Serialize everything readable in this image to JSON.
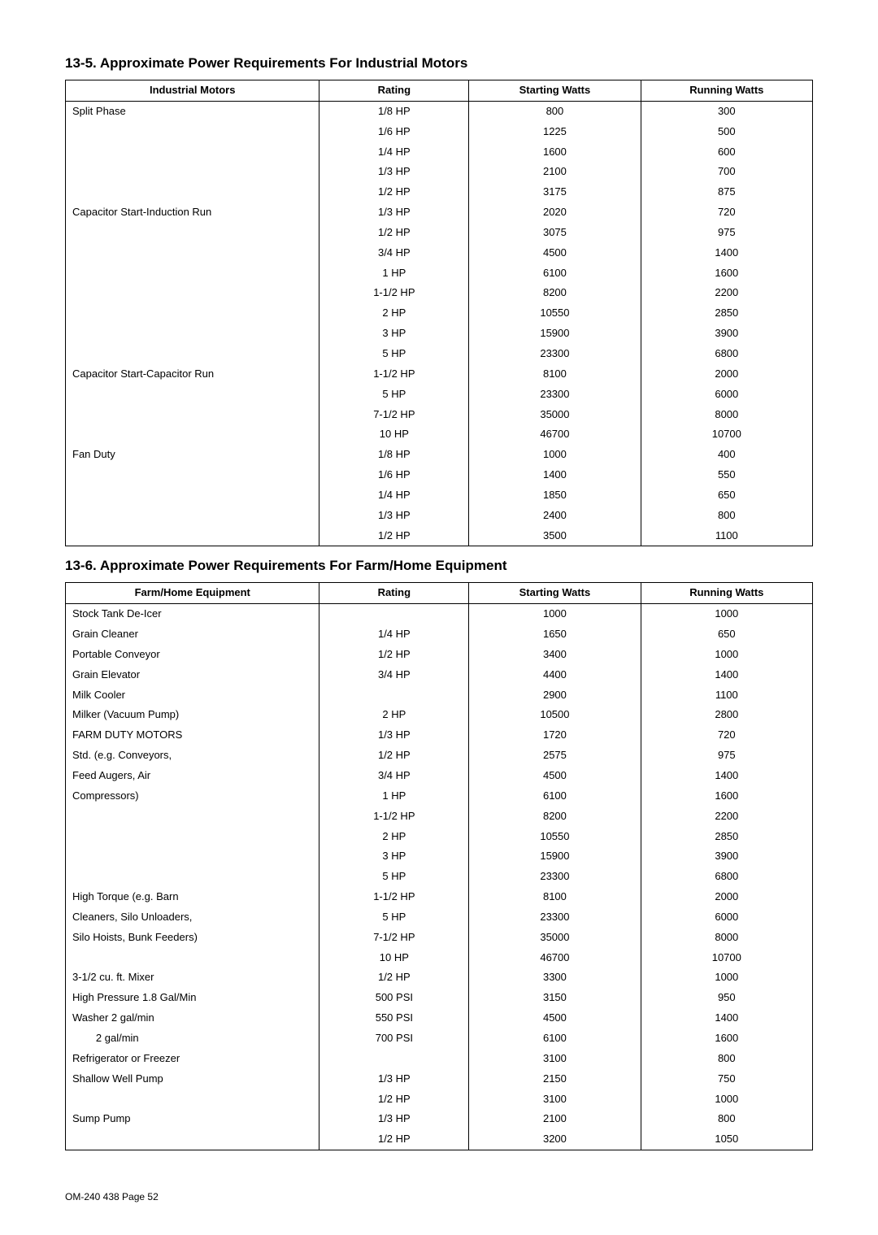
{
  "section1": {
    "title": "13-5. Approximate Power Requirements For Industrial Motors",
    "columns": [
      "Industrial Motors",
      "Rating",
      "Starting Watts",
      "Running Watts"
    ],
    "rows": [
      [
        "Split Phase",
        "1/8 HP",
        "800",
        "300"
      ],
      [
        "",
        "1/6 HP",
        "1225",
        "500"
      ],
      [
        "",
        "1/4 HP",
        "1600",
        "600"
      ],
      [
        "",
        "1/3 HP",
        "2100",
        "700"
      ],
      [
        "",
        "1/2 HP",
        "3175",
        "875"
      ],
      [
        "Capacitor Start-Induction Run",
        "1/3 HP",
        "2020",
        "720"
      ],
      [
        "",
        "1/2 HP",
        "3075",
        "975"
      ],
      [
        "",
        "3/4 HP",
        "4500",
        "1400"
      ],
      [
        "",
        "1 HP",
        "6100",
        "1600"
      ],
      [
        "",
        "1-1/2 HP",
        "8200",
        "2200"
      ],
      [
        "",
        "2 HP",
        "10550",
        "2850"
      ],
      [
        "",
        "3 HP",
        "15900",
        "3900"
      ],
      [
        "",
        "5 HP",
        "23300",
        "6800"
      ],
      [
        "Capacitor Start-Capacitor Run",
        "1-1/2 HP",
        "8100",
        "2000"
      ],
      [
        "",
        "5 HP",
        "23300",
        "6000"
      ],
      [
        "",
        "7-1/2 HP",
        "35000",
        "8000"
      ],
      [
        "",
        "10 HP",
        "46700",
        "10700"
      ],
      [
        "Fan Duty",
        "1/8 HP",
        "1000",
        "400"
      ],
      [
        "",
        "1/6 HP",
        "1400",
        "550"
      ],
      [
        "",
        "1/4 HP",
        "1850",
        "650"
      ],
      [
        "",
        "1/3 HP",
        "2400",
        "800"
      ],
      [
        "",
        "1/2 HP",
        "3500",
        "1100"
      ]
    ]
  },
  "section2": {
    "title": "13-6. Approximate Power Requirements For Farm/Home Equipment",
    "columns": [
      "Farm/Home Equipment",
      "Rating",
      "Starting Watts",
      "Running Watts"
    ],
    "rows": [
      [
        "Stock Tank De-Icer",
        "",
        "1000",
        "1000"
      ],
      [
        "Grain Cleaner",
        "1/4 HP",
        "1650",
        "650"
      ],
      [
        "Portable Conveyor",
        "1/2 HP",
        "3400",
        "1000"
      ],
      [
        "Grain Elevator",
        "3/4 HP",
        "4400",
        "1400"
      ],
      [
        "Milk Cooler",
        "",
        "2900",
        "1100"
      ],
      [
        "Milker (Vacuum Pump)",
        "2 HP",
        "10500",
        "2800"
      ],
      [
        "FARM DUTY MOTORS",
        "1/3 HP",
        "1720",
        "720"
      ],
      [
        "Std. (e.g. Conveyors,",
        "1/2 HP",
        "2575",
        "975"
      ],
      [
        "Feed Augers, Air",
        "3/4 HP",
        "4500",
        "1400"
      ],
      [
        "Compressors)",
        "1 HP",
        "6100",
        "1600"
      ],
      [
        "",
        "1-1/2 HP",
        "8200",
        "2200"
      ],
      [
        "",
        "2 HP",
        "10550",
        "2850"
      ],
      [
        "",
        "3 HP",
        "15900",
        "3900"
      ],
      [
        "",
        "5 HP",
        "23300",
        "6800"
      ],
      [
        "High Torque (e.g. Barn",
        "1-1/2 HP",
        "8100",
        "2000"
      ],
      [
        "Cleaners, Silo Unloaders,",
        "5 HP",
        "23300",
        "6000"
      ],
      [
        "Silo Hoists, Bunk Feeders)",
        "7-1/2 HP",
        "35000",
        "8000"
      ],
      [
        "",
        "10 HP",
        "46700",
        "10700"
      ],
      [
        "3-1/2 cu. ft. Mixer",
        "1/2 HP",
        "3300",
        "1000"
      ],
      [
        "High Pressure 1.8 Gal/Min",
        "500 PSI",
        "3150",
        "950"
      ],
      [
        "Washer 2 gal/min",
        "550 PSI",
        "4500",
        "1400"
      ],
      [
        "        2 gal/min",
        "700 PSI",
        "6100",
        "1600"
      ],
      [
        "Refrigerator or Freezer",
        "",
        "3100",
        "800"
      ],
      [
        "Shallow Well Pump",
        "1/3 HP",
        "2150",
        "750"
      ],
      [
        "",
        "1/2 HP",
        "3100",
        "1000"
      ],
      [
        "Sump Pump",
        "1/3 HP",
        "2100",
        "800"
      ],
      [
        "",
        "1/2 HP",
        "3200",
        "1050"
      ]
    ]
  },
  "footer": "OM-240 438 Page 52",
  "style": {
    "body_font_size": 13,
    "title_font_size": 17,
    "border_color": "#000000",
    "background_color": "#ffffff",
    "text_color": "#000000"
  }
}
